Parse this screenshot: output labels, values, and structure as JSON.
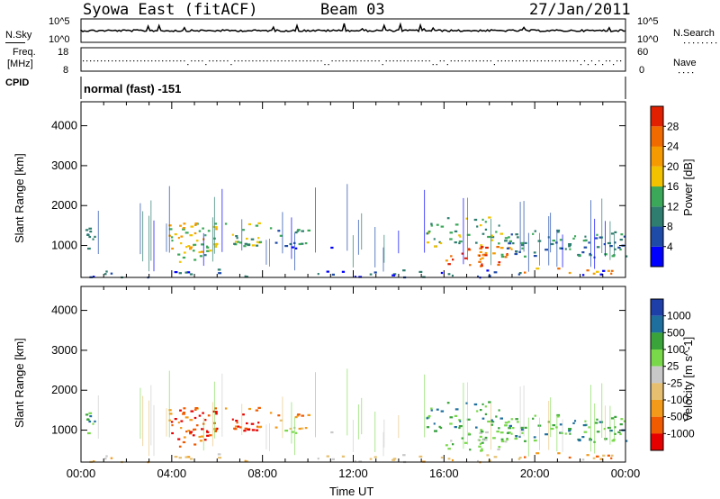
{
  "header": {
    "station": "Syowa East (fitACF)",
    "beam": "Beam 03",
    "date": "27/Jan/2011"
  },
  "aux_panels": {
    "nsky": {
      "label": "N.Sky",
      "tick_top": "10^5",
      "tick_bottom": "10^0",
      "right_label": "N.Search",
      "right_tick_top": "10^5",
      "right_tick_bottom": "10^0"
    },
    "freq": {
      "label_line1": "Freq.",
      "label_line2": "[MHz]",
      "tick_top": "18",
      "tick_bottom": "8",
      "right_label": "Nave",
      "right_tick_top": "60",
      "right_tick_bottom": "0"
    },
    "cpid": {
      "label": "CPID",
      "value": "normal (fast) -151"
    }
  },
  "colors": {
    "power": [
      "#0000ff",
      "#1e4aa8",
      "#2e7d6e",
      "#3aa858",
      "#f2c200",
      "#f59a00",
      "#f06a00",
      "#e02000"
    ],
    "velocity": [
      "#e60000",
      "#f05a00",
      "#f39a1a",
      "#e6c070",
      "#c8c8c8",
      "#78d84a",
      "#3aa43a",
      "#1e6e9e",
      "#1e3ea8"
    ]
  },
  "chart_data": [
    {
      "type": "heatmap",
      "name": "Power",
      "ylabel": "Slant Range [km]",
      "xlabel": "",
      "yticks": [
        1000,
        2000,
        3000,
        4000
      ],
      "ylim": [
        200,
        4600
      ],
      "xlim": [
        0,
        24
      ],
      "colorbar_label": "Power [dB]",
      "colorbar_ticks": [
        "4",
        "8",
        "12",
        "16",
        "20",
        "24",
        "28"
      ],
      "colorbar_range": [
        0,
        32
      ]
    },
    {
      "type": "heatmap",
      "name": "Velocity",
      "ylabel": "Slant Range [km]",
      "xlabel": "Time UT",
      "xticks": [
        "00:00",
        "04:00",
        "08:00",
        "12:00",
        "16:00",
        "20:00",
        "00:00"
      ],
      "yticks": [
        1000,
        2000,
        3000,
        4000
      ],
      "ylim": [
        200,
        4600
      ],
      "xlim": [
        0,
        24
      ],
      "colorbar_label": "Velocity [m s^-1]",
      "colorbar_ticks": [
        "1000",
        "500",
        "100",
        "25",
        "-25",
        "-100",
        "-500",
        "-1000"
      ]
    }
  ]
}
